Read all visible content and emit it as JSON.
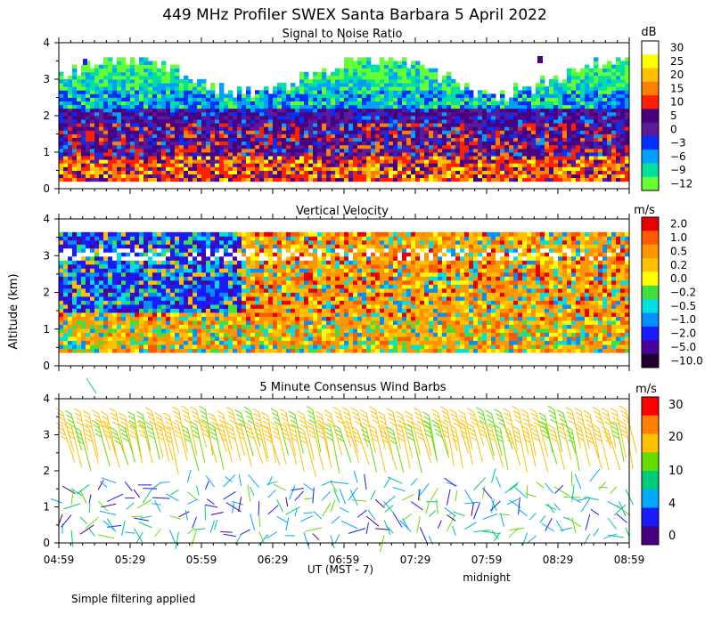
{
  "chart_data": {
    "title": "449 MHz Profiler SWEX Santa Barbara  5 April 2022",
    "ylabel": "Altitude (km)",
    "xlabel": "UT  (MST - 7)",
    "midnight_label": "midnight",
    "footnote": "Simple filtering applied",
    "x_ticks": [
      "04:59",
      "05:29",
      "05:59",
      "06:29",
      "06:59",
      "07:29",
      "07:59",
      "08:29",
      "08:59"
    ],
    "y_ticks": [
      "0",
      "1",
      "2",
      "3",
      "4"
    ],
    "panels": [
      {
        "type": "heatmap",
        "title": "Signal to Noise Ratio",
        "unit": "dB",
        "ylim": [
          0,
          4
        ],
        "colorbar_labels": [
          "30",
          "25",
          "20",
          "15",
          "10",
          "5",
          "0",
          "−3",
          "−6",
          "−9",
          "−12"
        ],
        "colorbar_colors": [
          "#ffffff",
          "#ffff00",
          "#ffc000",
          "#ff8000",
          "#ff2000",
          "#4b0082",
          "#5a1a9a",
          "#0030ff",
          "#00a0ff",
          "#00e0a0",
          "#66ff33"
        ]
      },
      {
        "type": "heatmap",
        "title": "Vertical Velocity",
        "unit": "m/s",
        "ylim": [
          0,
          4
        ],
        "colorbar_labels": [
          "2.0",
          "1.0",
          "0.5",
          "0.2",
          "0.0",
          "−0.2",
          "−0.5",
          "−1.0",
          "−2.0",
          "−5.0",
          "−10.0"
        ],
        "colorbar_colors": [
          "#e60000",
          "#ff5a00",
          "#ff9600",
          "#ffc000",
          "#ffff00",
          "#40e040",
          "#00e0e0",
          "#0090ff",
          "#1a1aff",
          "#4b00a0",
          "#200030"
        ]
      },
      {
        "type": "wind_barbs",
        "title": "5 Minute Consensus Wind Barbs",
        "unit": "m/s",
        "ylim": [
          0,
          4
        ],
        "colorbar_labels": [
          "30",
          "20",
          "10",
          "4",
          "0"
        ],
        "colorbar_colors": [
          "#ff0000",
          "#ff8000",
          "#ffc000",
          "#66dd00",
          "#00cc77",
          "#00aaff",
          "#1a1aff",
          "#4b0082"
        ]
      }
    ]
  }
}
